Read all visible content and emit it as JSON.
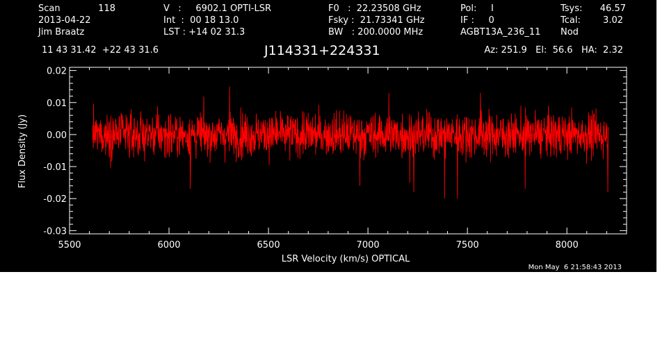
{
  "header": {
    "scan_label": "Scan",
    "scan_value": "118",
    "date": "2013-04-22",
    "observer": "Jim Braatz",
    "v_line": "V   :     6902.1 OPTI-LSR",
    "int_line": "Int  :  00 18 13.0",
    "lst_line": "LST : +14 02 31.3",
    "f0_line": "F0   :  22.23508 GHz",
    "fsky_line": "Fsky :  21.73341 GHz",
    "bw_line": "BW   : 200.0000 MHz",
    "pol_line": "Pol:     I",
    "if_line": "IF :     0",
    "project": "AGBT13A_236_11",
    "tsys_label": "Tsys:",
    "tsys_value": "46.57",
    "tcal_label": "Tcal:",
    "tcal_value": "3.02",
    "mode": "Nod",
    "coords": "11 43 31.42  +22 43 31.6",
    "source": "J114331+224331",
    "azelha": "Az: 251.9   El:  56.6   HA:  2.32"
  },
  "timestamp": "Mon May  6 21:58:43 2013",
  "colors": {
    "background": "#000000",
    "foreground": "#ffffff",
    "series": "#ff0000"
  },
  "chart_data": {
    "type": "line",
    "xlabel": "LSR Velocity (km/s) OPTICAL",
    "ylabel": "Flux Density (Jy)",
    "xlim": [
      5500,
      8300
    ],
    "ylim": [
      -0.031,
      0.021
    ],
    "x_ticks": [
      5500,
      6000,
      6500,
      7000,
      7500,
      8000
    ],
    "x_tick_labels": [
      "5500",
      "6000",
      "6500",
      "7000",
      "7500",
      "8000"
    ],
    "y_ticks": [
      0.02,
      0.01,
      0.0,
      -0.01,
      -0.02,
      -0.03
    ],
    "y_tick_labels": [
      "0.02",
      "0.01",
      "0.00",
      "-0.01",
      "-0.02",
      "-0.03"
    ],
    "x_range": [
      5615,
      8210
    ],
    "series": [
      {
        "noise_sigma": 0.0045,
        "mean": 0.0,
        "spikes": [
          {
            "x": 6107,
            "y": -0.017
          },
          {
            "x": 6305,
            "y": 0.015
          },
          {
            "x": 6960,
            "y": -0.016
          },
          {
            "x": 7105,
            "y": 0.013
          },
          {
            "x": 7210,
            "y": -0.015
          },
          {
            "x": 7230,
            "y": -0.018
          },
          {
            "x": 7385,
            "y": -0.02
          },
          {
            "x": 7450,
            "y": -0.02
          },
          {
            "x": 7565,
            "y": 0.013
          },
          {
            "x": 7790,
            "y": -0.017
          },
          {
            "x": 8205,
            "y": -0.018
          }
        ]
      }
    ],
    "grid": false
  }
}
